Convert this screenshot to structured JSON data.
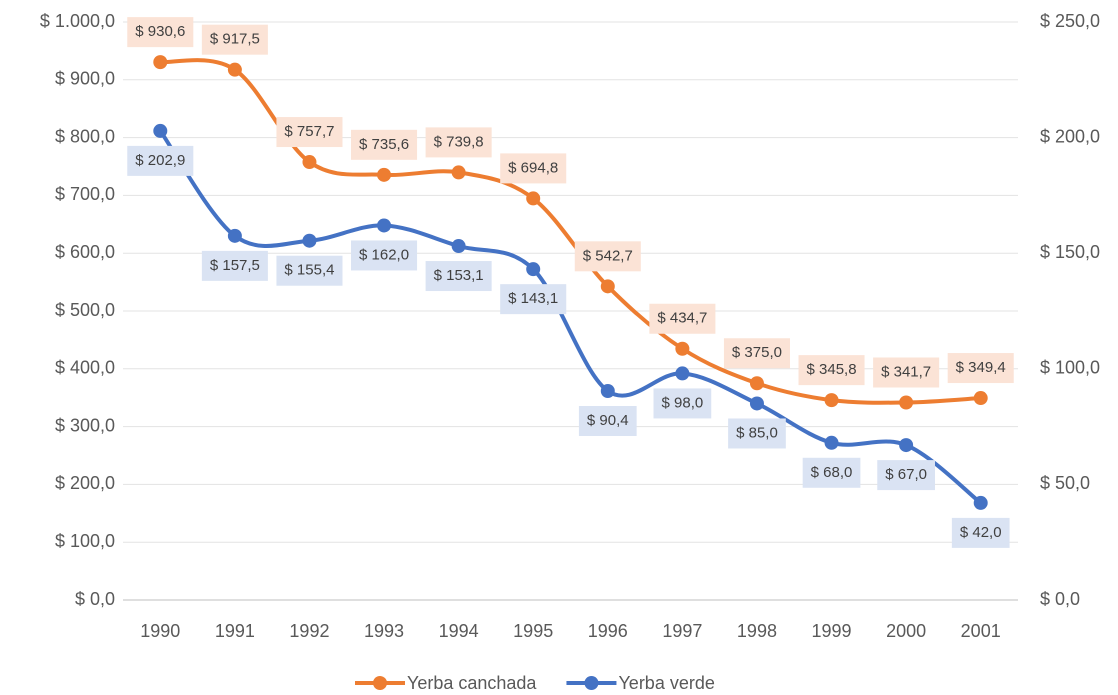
{
  "chart_data": {
    "type": "line",
    "smooth": true,
    "grid": true,
    "categories": [
      "1990",
      "1991",
      "1992",
      "1993",
      "1994",
      "1995",
      "1996",
      "1997",
      "1998",
      "1999",
      "2000",
      "2001"
    ],
    "ylim": [
      0,
      1000
    ],
    "yticks": [
      {
        "value": 0,
        "label": "$ 0,0"
      },
      {
        "value": 100,
        "label": "$ 100,0"
      },
      {
        "value": 200,
        "label": "$ 200,0"
      },
      {
        "value": 300,
        "label": "$ 300,0"
      },
      {
        "value": 400,
        "label": "$ 400,0"
      },
      {
        "value": 500,
        "label": "$ 500,0"
      },
      {
        "value": 600,
        "label": "$ 600,0"
      },
      {
        "value": 700,
        "label": "$ 700,0"
      },
      {
        "value": 800,
        "label": "$ 800,0"
      },
      {
        "value": 900,
        "label": "$ 900,0"
      },
      {
        "value": 1000,
        "label": "$ 1.000,0"
      }
    ],
    "y2lim": [
      0,
      250
    ],
    "y2ticks": [
      {
        "value": 0,
        "label": "$ 0,0"
      },
      {
        "value": 50,
        "label": "$ 50,0"
      },
      {
        "value": 100,
        "label": "$ 100,0"
      },
      {
        "value": 150,
        "label": "$ 150,0"
      },
      {
        "value": 200,
        "label": "$ 200,0"
      },
      {
        "value": 250,
        "label": "$ 250,0"
      }
    ],
    "legend": "bottom",
    "series": [
      {
        "name": "Yerba canchada",
        "color": "#ed7d31",
        "label_bg": "#fbe3d6",
        "label_side": "above",
        "values": [
          930.6,
          917.5,
          757.7,
          735.6,
          739.8,
          694.8,
          542.7,
          434.7,
          375.0,
          345.8,
          341.7,
          349.4
        ],
        "value_labels": [
          "$ 930,6",
          "$ 917,5",
          "$ 757,7",
          "$ 735,6",
          "$ 739,8",
          "$ 694,8",
          "$ 542,7",
          "$ 434,7",
          "$ 375,0",
          "$ 345,8",
          "$ 341,7",
          "$ 349,4"
        ]
      },
      {
        "name": "Yerba verde",
        "color": "#4472c4",
        "label_bg": "#dae3f3",
        "label_side": "below",
        "axis": "y2",
        "values": [
          202.9,
          157.5,
          155.4,
          162.0,
          153.1,
          143.1,
          90.4,
          98.0,
          85.0,
          68.0,
          67.0,
          42.0
        ],
        "value_labels": [
          "$ 202,9",
          "$ 157,5",
          "$ 155,4",
          "$ 162,0",
          "$ 153,1",
          "$ 143,1",
          "$ 90,4",
          "$ 98,0",
          "$ 85,0",
          "$ 68,0",
          "$ 67,0",
          "$ 42,0"
        ]
      }
    ]
  }
}
